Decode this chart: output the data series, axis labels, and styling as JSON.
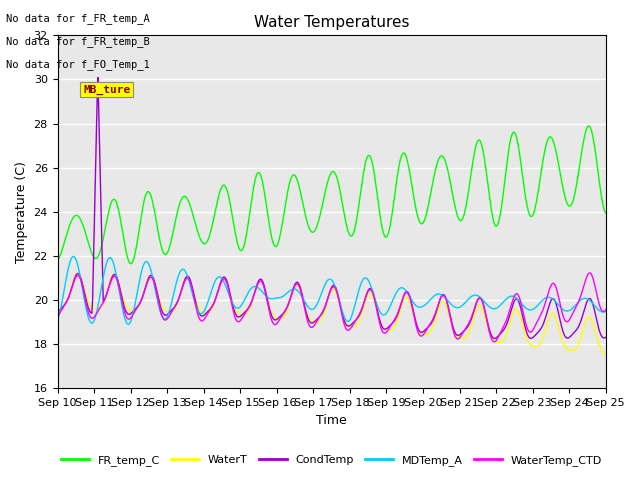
{
  "title": "Water Temperatures",
  "xlabel": "Time",
  "ylabel": "Temperature (C)",
  "ylim": [
    16,
    32
  ],
  "yticks": [
    16,
    18,
    20,
    22,
    24,
    26,
    28,
    30,
    32
  ],
  "n_days": 15,
  "xtick_labels": [
    "Sep 10",
    "Sep 11",
    "Sep 12",
    "Sep 13",
    "Sep 14",
    "Sep 15",
    "Sep 16",
    "Sep 17",
    "Sep 18",
    "Sep 19",
    "Sep 20",
    "Sep 21",
    "Sep 22",
    "Sep 23",
    "Sep 24",
    "Sep 25"
  ],
  "no_data_texts": [
    "No data for f_FR_temp_A",
    "No data for f_FR_temp_B",
    "No data for f_FO_Temp_1"
  ],
  "mb_ture_text": "MB_ture",
  "legend_entries": [
    "FR_temp_C",
    "WaterT",
    "CondTemp",
    "MDTemp_A",
    "WaterTemp_CTD"
  ],
  "line_colors": {
    "FR_temp_C": "#00ff00",
    "WaterT": "#ffff00",
    "CondTemp": "#9900cc",
    "MDTemp_A": "#00ccff",
    "WaterTemp_CTD": "#ff00ff"
  },
  "fig_bg_color": "#ffffff",
  "plot_bg_color": "#e8e8e8",
  "title_fontsize": 11,
  "axis_label_fontsize": 9,
  "tick_fontsize": 8
}
